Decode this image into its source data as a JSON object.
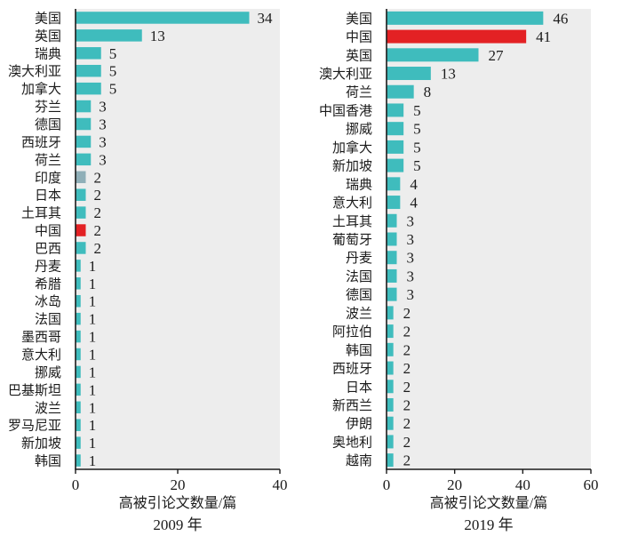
{
  "page": {
    "background_color": "#ffffff",
    "text_color": "#1b1b1b",
    "axis_color": "#1b1b1b",
    "plot_background_color": "#ededed"
  },
  "palette": {
    "bar_teal": "#3fbcbd",
    "highlight_red": "#e32124",
    "muted_grayblue": "#8fafb8"
  },
  "chart_data": [
    {
      "type": "bar",
      "orientation": "horizontal",
      "xlabel": "高被引论文数量/篇",
      "year_label": "2009 年",
      "xlim": [
        0,
        40
      ],
      "xticks": [
        0,
        20,
        40
      ],
      "grid": false,
      "legend": null,
      "value_labels": true,
      "categories": [
        "美国",
        "英国",
        "瑞典",
        "澳大利亚",
        "加拿大",
        "芬兰",
        "德国",
        "西班牙",
        "荷兰",
        "印度",
        "日本",
        "土耳其",
        "中国",
        "巴西",
        "丹麦",
        "希腊",
        "冰岛",
        "法国",
        "墨西哥",
        "意大利",
        "挪威",
        "巴基斯坦",
        "波兰",
        "罗马尼亚",
        "新加坡",
        "韩国"
      ],
      "values": [
        34,
        13,
        5,
        5,
        5,
        3,
        3,
        3,
        3,
        2,
        2,
        2,
        2,
        2,
        1,
        1,
        1,
        1,
        1,
        1,
        1,
        1,
        1,
        1,
        1,
        1
      ],
      "default_bar_color": "#3fbcbd",
      "color_overrides": {
        "中国": "#e32124",
        "印度": "#8fafb8"
      }
    },
    {
      "type": "bar",
      "orientation": "horizontal",
      "xlabel": "高被引论文数量/篇",
      "year_label": "2019 年",
      "xlim": [
        0,
        60
      ],
      "xticks": [
        0,
        20,
        40,
        60
      ],
      "grid": false,
      "legend": null,
      "value_labels": true,
      "categories": [
        "美国",
        "中国",
        "英国",
        "澳大利亚",
        "荷兰",
        "中国香港",
        "挪威",
        "加拿大",
        "新加坡",
        "瑞典",
        "意大利",
        "土耳其",
        "葡萄牙",
        "丹麦",
        "法国",
        "德国",
        "波兰",
        "阿拉伯",
        "韩国",
        "西班牙",
        "日本",
        "新西兰",
        "伊朗",
        "奥地利",
        "越南"
      ],
      "values": [
        46,
        41,
        27,
        13,
        8,
        5,
        5,
        5,
        5,
        4,
        4,
        3,
        3,
        3,
        3,
        3,
        2,
        2,
        2,
        2,
        2,
        2,
        2,
        2,
        2
      ],
      "default_bar_color": "#3fbcbd",
      "color_overrides": {
        "中国": "#e32124"
      }
    }
  ]
}
